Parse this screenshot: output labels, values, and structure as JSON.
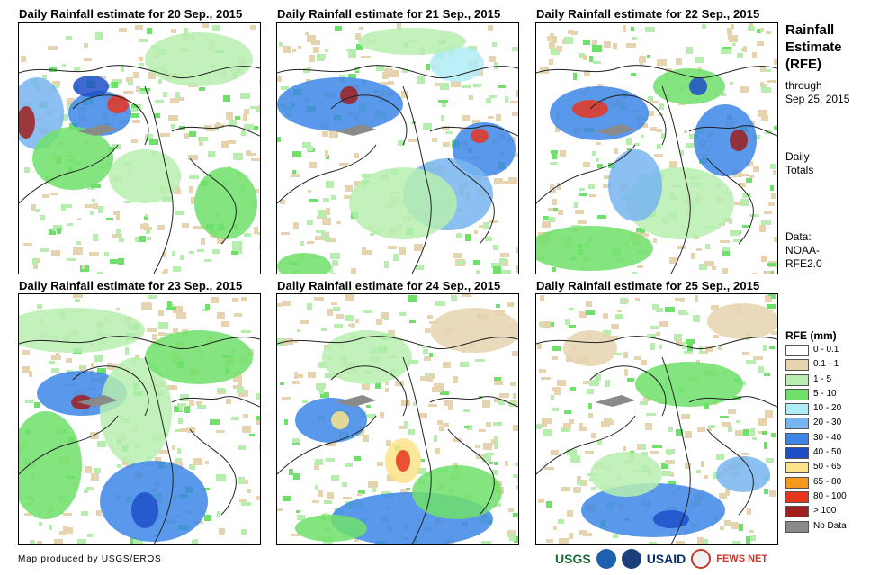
{
  "panels": [
    {
      "title": "Daily Rainfall estimate for 20 Sep., 2015"
    },
    {
      "title": "Daily Rainfall estimate for 21 Sep., 2015"
    },
    {
      "title": "Daily Rainfall estimate for 22 Sep., 2015"
    },
    {
      "title": "Daily Rainfall estimate for 23 Sep., 2015"
    },
    {
      "title": "Daily Rainfall estimate for 24 Sep., 2015"
    },
    {
      "title": "Daily Rainfall estimate for 25 Sep., 2015"
    }
  ],
  "sidebar": {
    "title_line1": "Rainfall",
    "title_line2": "Estimate",
    "title_line3": "(RFE)",
    "through_label": "through",
    "through_date": "Sep 25, 2015",
    "daily_line1": "Daily",
    "daily_line2": "Totals",
    "data_label": "Data:",
    "data_source_line1": "NOAA-",
    "data_source_line2": "RFE2.0"
  },
  "legend": {
    "title": "RFE (mm)",
    "items": [
      {
        "label": "0 - 0.1",
        "color": "#ffffff"
      },
      {
        "label": "0.1 - 1",
        "color": "#e6d4b0"
      },
      {
        "label": "1 - 5",
        "color": "#b7eeb0"
      },
      {
        "label": "5 - 10",
        "color": "#6fe06a"
      },
      {
        "label": "10 - 20",
        "color": "#b0ecf7"
      },
      {
        "label": "20 - 30",
        "color": "#78b5f0"
      },
      {
        "label": "30 - 40",
        "color": "#3d86e8"
      },
      {
        "label": "40 - 50",
        "color": "#1d4fc9"
      },
      {
        "label": "50 - 65",
        "color": "#fbe38a"
      },
      {
        "label": "65 - 80",
        "color": "#f59a1e"
      },
      {
        "label": "80 - 100",
        "color": "#e8361e"
      },
      {
        "label": "> 100",
        "color": "#a01f1f"
      },
      {
        "label": "No Data",
        "color": "#8a8a8a"
      }
    ]
  },
  "footer": {
    "credit": "Map produced by USGS/EROS",
    "logo_usgs": "USGS",
    "logo_usaid": "USAID",
    "logo_fews": "FEWS NET"
  }
}
